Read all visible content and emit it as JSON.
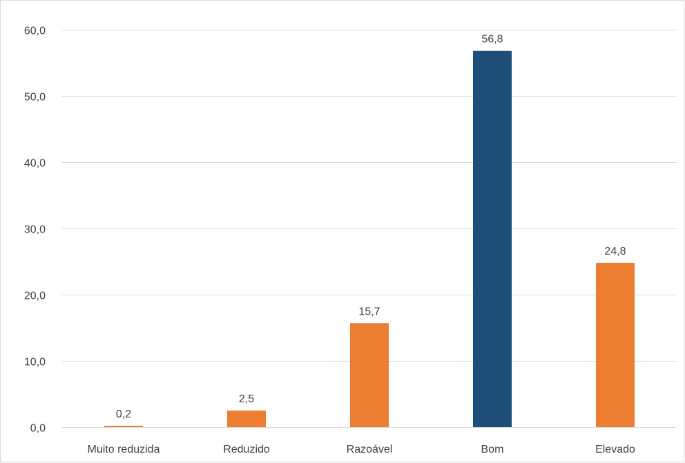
{
  "chart_data": {
    "type": "bar",
    "title": "",
    "xlabel": "",
    "ylabel": "",
    "categories": [
      "Muito reduzida",
      "Reduzido",
      "Razoável",
      "Bom",
      "Elevado"
    ],
    "values": [
      0.2,
      2.5,
      15.7,
      56.8,
      24.8
    ],
    "value_labels": [
      "0,2",
      "2,5",
      "15,7",
      "56,8",
      "24,8"
    ],
    "ylim": [
      0,
      60
    ],
    "yticks": [
      0,
      10,
      20,
      30,
      40,
      50,
      60
    ],
    "ytick_labels": [
      "0,0",
      "10,0",
      "20,0",
      "30,0",
      "40,0",
      "50,0",
      "60,0"
    ],
    "grid": true,
    "legend": "none",
    "colors": {
      "default": "#ed7d31",
      "highlight": "#1f4e79",
      "highlight_category": "Bom",
      "grid": "#d9d9d9",
      "text": "#404040"
    }
  }
}
